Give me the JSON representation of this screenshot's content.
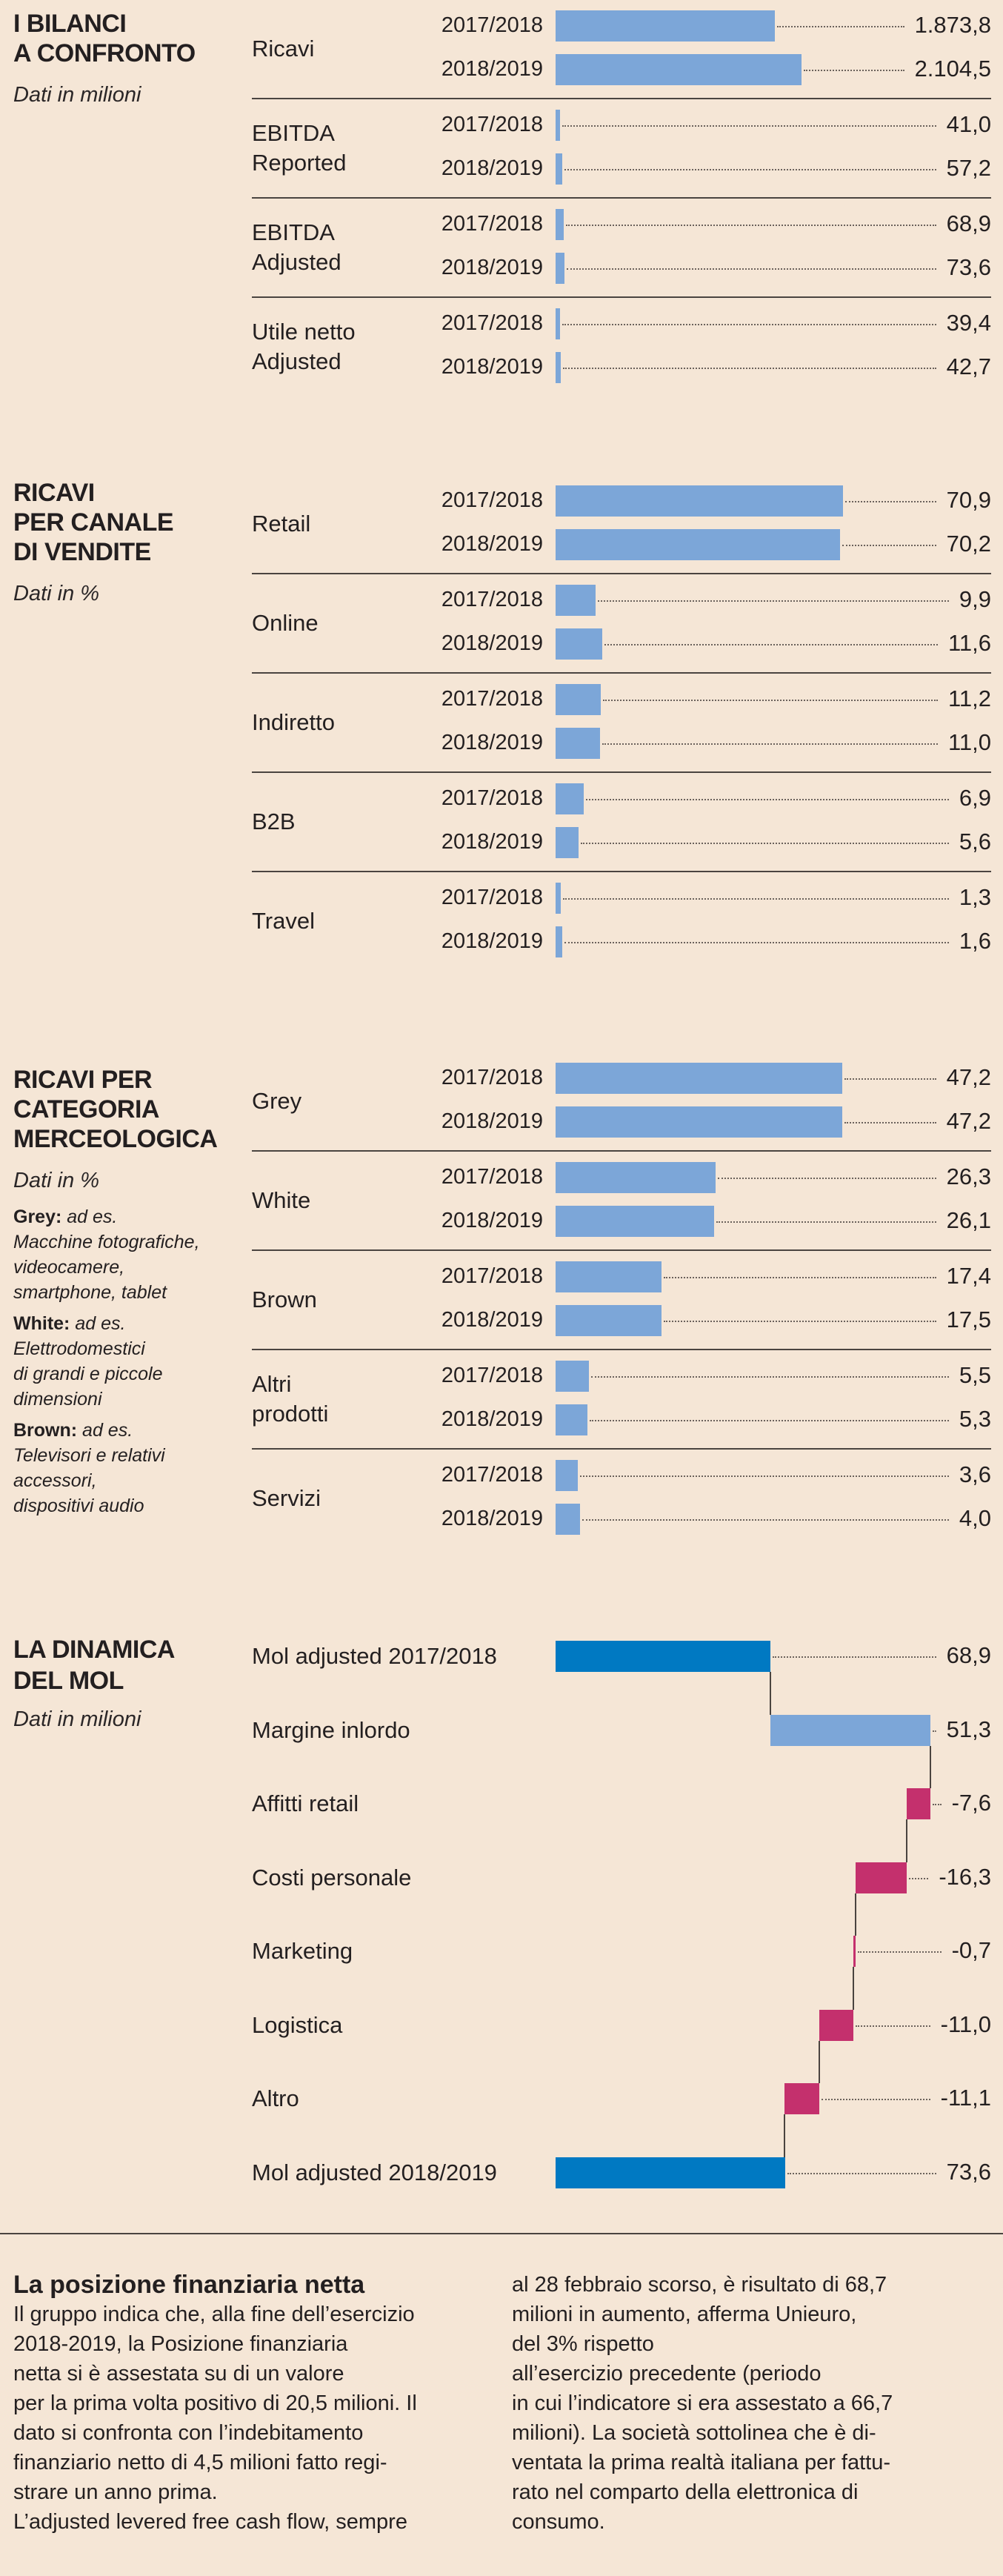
{
  "colors": {
    "background": "#f5e6d6",
    "bar": "#7ca6d8",
    "mol_bar": "#0079c2",
    "negative_bar": "#c4306d",
    "divider": "#4a4440"
  },
  "chart_data": [
    {
      "type": "bar",
      "title": "I BILANCI A CONFRONTO",
      "title_lines": [
        "I BILANCI",
        "A CONFRONTO"
      ],
      "subtitle": "Dati in milioni",
      "categories": [
        "2017/2018",
        "2018/2019"
      ],
      "groups": [
        {
          "label_lines": [
            "Ricavi"
          ],
          "values": [
            1873.8,
            2104.5
          ]
        },
        {
          "label_lines": [
            "EBITDA",
            "Reported"
          ],
          "values": [
            41.0,
            57.2
          ]
        },
        {
          "label_lines": [
            "EBITDA",
            "Adjusted"
          ],
          "values": [
            68.9,
            73.6
          ]
        },
        {
          "label_lines": [
            "Utile netto",
            "Adjusted"
          ],
          "values": [
            39.4,
            42.7
          ]
        }
      ]
    },
    {
      "type": "bar",
      "title": "RICAVI PER CANALE DI VENDITE",
      "title_lines": [
        "RICAVI",
        "PER CANALE",
        "DI VENDITE"
      ],
      "subtitle": "Dati in %",
      "categories": [
        "2017/2018",
        "2018/2019"
      ],
      "groups": [
        {
          "label_lines": [
            "Retail"
          ],
          "values": [
            70.9,
            70.2
          ]
        },
        {
          "label_lines": [
            "Online"
          ],
          "values": [
            9.9,
            11.6
          ]
        },
        {
          "label_lines": [
            "Indiretto"
          ],
          "values": [
            11.2,
            11.0
          ]
        },
        {
          "label_lines": [
            "B2B"
          ],
          "values": [
            6.9,
            5.6
          ]
        },
        {
          "label_lines": [
            "Travel"
          ],
          "values": [
            1.3,
            1.6
          ]
        }
      ]
    },
    {
      "type": "bar",
      "title": "RICAVI PER CATEGORIA MERCEOLOGICA",
      "title_lines": [
        "RICAVI PER",
        "CATEGORIA",
        "MERCEOLOGICA"
      ],
      "subtitle": "Dati in %",
      "notes": [
        {
          "term": "Grey:",
          "lines": [
            "ad es.",
            "Macchine fotografiche,",
            "videocamere,",
            "smartphone, tablet"
          ]
        },
        {
          "term": "White:",
          "lines": [
            "ad es.",
            "Elettrodomestici",
            "di grandi e piccole",
            "dimensioni"
          ]
        },
        {
          "term": "Brown:",
          "lines": [
            "ad es.",
            "Televisori e relativi",
            "accessori,",
            "dispositivi audio"
          ]
        }
      ],
      "categories": [
        "2017/2018",
        "2018/2019"
      ],
      "groups": [
        {
          "label_lines": [
            "Grey"
          ],
          "values": [
            47.2,
            47.2
          ]
        },
        {
          "label_lines": [
            "White"
          ],
          "values": [
            26.3,
            26.1
          ]
        },
        {
          "label_lines": [
            "Brown"
          ],
          "values": [
            17.4,
            17.5
          ]
        },
        {
          "label_lines": [
            "Altri",
            "prodotti"
          ],
          "values": [
            5.5,
            5.3
          ]
        },
        {
          "label_lines": [
            "Servizi"
          ],
          "values": [
            3.6,
            4.0
          ]
        }
      ]
    },
    {
      "type": "waterfall",
      "title": "LA DINAMICA DEL MOL",
      "title_lines": [
        "LA DINAMICA",
        "DEL MOL"
      ],
      "subtitle": "Dati in milioni",
      "steps": [
        {
          "label": "Mol adjusted 2017/2018",
          "value": 68.9,
          "kind": "total"
        },
        {
          "label": "Margine inlordo",
          "value": 51.3,
          "kind": "increase"
        },
        {
          "label": "Affitti retail",
          "value": -7.6,
          "kind": "decrease"
        },
        {
          "label": "Costi personale",
          "value": -16.3,
          "kind": "decrease"
        },
        {
          "label": "Marketing",
          "value": -0.7,
          "kind": "decrease"
        },
        {
          "label": "Logistica",
          "value": -11.0,
          "kind": "decrease"
        },
        {
          "label": "Altro",
          "value": -11.1,
          "kind": "decrease"
        },
        {
          "label": "Mol adjusted 2018/2019",
          "value": 73.6,
          "kind": "total"
        }
      ]
    }
  ],
  "article": {
    "heading": "La posizione finanziaria netta",
    "col1": [
      "Il gruppo indica che, alla fine dell’esercizio",
      "2018-2019, la Posizione finanziaria",
      "netta si è assestata su di un  valore",
      "per la prima volta positivo di 20,5 milioni. Il",
      "dato si confronta con l’indebitamento",
      "finanziario netto di 4,5 milioni fatto regi-",
      "strare un anno prima.",
      "L’adjusted levered free cash flow, sempre"
    ],
    "col2": [
      "al 28 febbraio scorso, è risultato di 68,7",
      "milioni in aumento, afferma Unieuro,",
      "del 3% rispetto",
      "all’esercizio precedente (periodo",
      "in cui l’indicatore si era assestato a 66,7",
      "milioni). La società sottolinea che è di-",
      "ventata la prima realtà italiana per fattu-",
      "rato nel comparto della elettronica di",
      "consumo."
    ]
  }
}
